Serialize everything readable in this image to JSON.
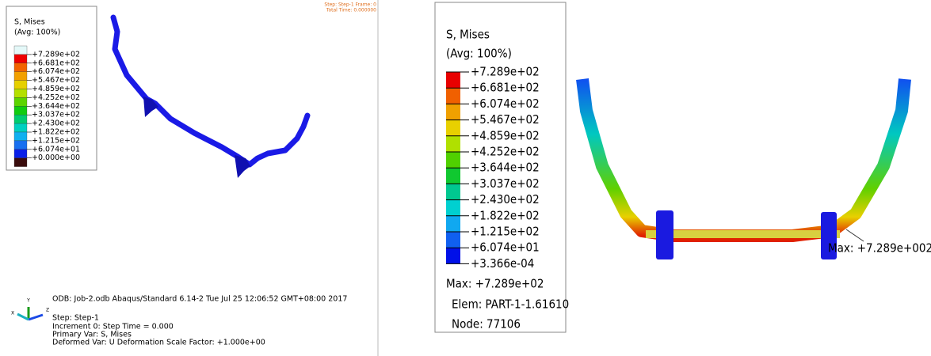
{
  "left_panel": {
    "legend": {
      "title": "S, Mises",
      "subtitle": "(Avg: 100%)",
      "labels": [
        "+7.289e+02",
        "+6.681e+02",
        "+6.074e+02",
        "+5.467e+02",
        "+4.859e+02",
        "+4.252e+02",
        "+3.644e+02",
        "+3.037e+02",
        "+2.430e+02",
        "+1.822e+02",
        "+1.215e+02",
        "+6.074e+01",
        "+0.000e+00"
      ],
      "colors": [
        "#e4f8f8",
        "#ee0000",
        "#f26400",
        "#f2a000",
        "#e6d000",
        "#b4e000",
        "#5cd400",
        "#10cc10",
        "#00cc70",
        "#00d0c0",
        "#10b0f0",
        "#1870f0",
        "#0a20e8",
        "#3a0c0c"
      ]
    },
    "status": {
      "line1": "Step: Step-1    Frame: 0",
      "line2": "Total Time: 0.000000"
    },
    "triad": {
      "y": "Y",
      "z": "Z",
      "x": "X"
    },
    "info": [
      "ODB: Job-2.odb    Abaqus/Standard 6.14-2    Tue Jul 25 12:06:52 GMT+08:00 2017",
      "Step: Step-1",
      "Increment     0: Step Time =    0.000",
      "Primary Var: S, Mises",
      "Deformed Var: U   Deformation Scale Factor: +1.000e+00"
    ]
  },
  "right_panel": {
    "legend": {
      "title": "S, Mises",
      "subtitle": "(Avg: 100%)",
      "labels": [
        "+7.289e+02",
        "+6.681e+02",
        "+6.074e+02",
        "+5.467e+02",
        "+4.859e+02",
        "+4.252e+02",
        "+3.644e+02",
        "+3.037e+02",
        "+2.430e+02",
        "+1.822e+02",
        "+1.215e+02",
        "+6.074e+01",
        "+3.366e-04"
      ],
      "colors": [
        "#e80000",
        "#f06000",
        "#f0a000",
        "#e8d000",
        "#b0e000",
        "#50d000",
        "#10c830",
        "#00c890",
        "#00d0d0",
        "#10a8f0",
        "#1060f0",
        "#0010e8"
      ]
    },
    "max": "Max: +7.289e+02",
    "elem": "Elem: PART-1-1.61610",
    "node": "Node: 77106",
    "annotation": "Max: +7.289e+002"
  }
}
